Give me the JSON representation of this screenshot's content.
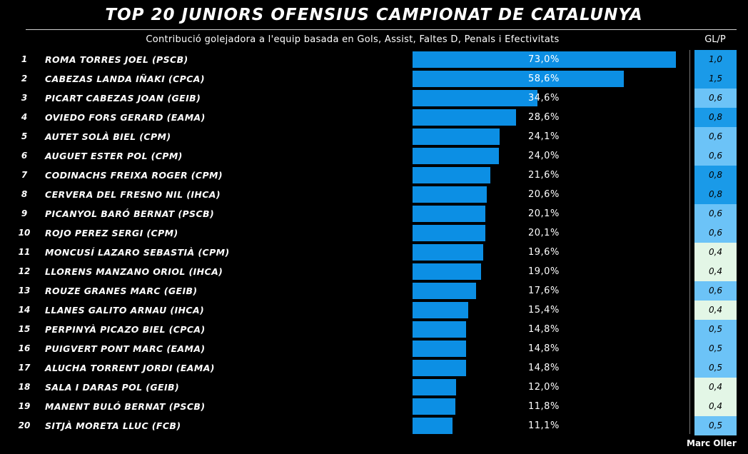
{
  "header": {
    "title": "TOP 20 JUNIORS OFENSIUS CAMPIONAT DE CATALUNYA",
    "subtitle": "Contribució golejadora a l'equip basada en Gols, Assist, Faltes D, Penals i Efectivitats",
    "glp_label": "GL/P"
  },
  "credit": "Marc Oller",
  "colors": {
    "bar": "#0c8fe4",
    "glp_high": "#1a9ae8",
    "glp_mid": "#6cc3f7",
    "glp_low": "#e3f6e6"
  },
  "chart_data": {
    "type": "bar",
    "orientation": "horizontal",
    "title": "TOP 20 JUNIORS OFENSIUS CAMPIONAT DE CATALUNYA",
    "subtitle": "Contribució golejadora a l'equip basada en Gols, Assist, Faltes D, Penals i Efectivitats",
    "xlim": [
      0,
      100
    ],
    "grid": false,
    "ranks": [
      "1",
      "2",
      "3",
      "4",
      "5",
      "6",
      "7",
      "8",
      "9",
      "10",
      "11",
      "12",
      "13",
      "14",
      "15",
      "16",
      "17",
      "18",
      "19",
      "20"
    ],
    "categories": [
      "ROMA TORRES JOEL (PSCB)",
      "CABEZAS LANDA IÑAKI (CPCA)",
      "PICART CABEZAS JOAN (GEIB)",
      "OVIEDO FORS GERARD (EAMA)",
      "AUTET SOLÀ BIEL (CPM)",
      "AUGUET ESTER POL (CPM)",
      "CODINACHS FREIXA ROGER (CPM)",
      "CERVERA DEL FRESNO NIL (IHCA)",
      "PICANYOL BARÓ BERNAT (PSCB)",
      "ROJO PEREZ SERGI (CPM)",
      "MONCUSÍ LAZARO SEBASTIÀ (CPM)",
      "LLORENS MANZANO ORIOL (IHCA)",
      "ROUZE GRANES MARC (GEIB)",
      "LLANES GALITO ARNAU (IHCA)",
      "PERPINYÀ PICAZO BIEL (CPCA)",
      "PUIGVERT PONT MARC (EAMA)",
      "ALUCHA TORRENT JORDI (EAMA)",
      "SALA I DARAS POL (GEIB)",
      "MANENT BULÓ BERNAT (PSCB)",
      "SITJÀ MORETA LLUC (FCB)"
    ],
    "values": [
      73.0,
      58.6,
      34.6,
      28.6,
      24.1,
      24.0,
      21.6,
      20.6,
      20.1,
      20.1,
      19.6,
      19.0,
      17.6,
      15.4,
      14.8,
      14.8,
      14.8,
      12.0,
      11.8,
      11.1
    ],
    "value_labels": [
      "73,0%",
      "58,6%",
      "34,6%",
      "28,6%",
      "24,1%",
      "24,0%",
      "21,6%",
      "20,6%",
      "20,1%",
      "20,1%",
      "19,6%",
      "19,0%",
      "17,6%",
      "15,4%",
      "14,8%",
      "14,8%",
      "14,8%",
      "12,0%",
      "11,8%",
      "11,1%"
    ],
    "glp_values": [
      1.0,
      1.5,
      0.6,
      0.8,
      0.6,
      0.6,
      0.8,
      0.8,
      0.6,
      0.6,
      0.4,
      0.4,
      0.6,
      0.4,
      0.5,
      0.5,
      0.5,
      0.4,
      0.4,
      0.5
    ],
    "glp_labels": [
      "1,0",
      "1,5",
      "0,6",
      "0,8",
      "0,6",
      "0,6",
      "0,8",
      "0,8",
      "0,6",
      "0,6",
      "0,4",
      "0,4",
      "0,6",
      "0,4",
      "0,5",
      "0,5",
      "0,5",
      "0,4",
      "0,4",
      "0,5"
    ]
  }
}
